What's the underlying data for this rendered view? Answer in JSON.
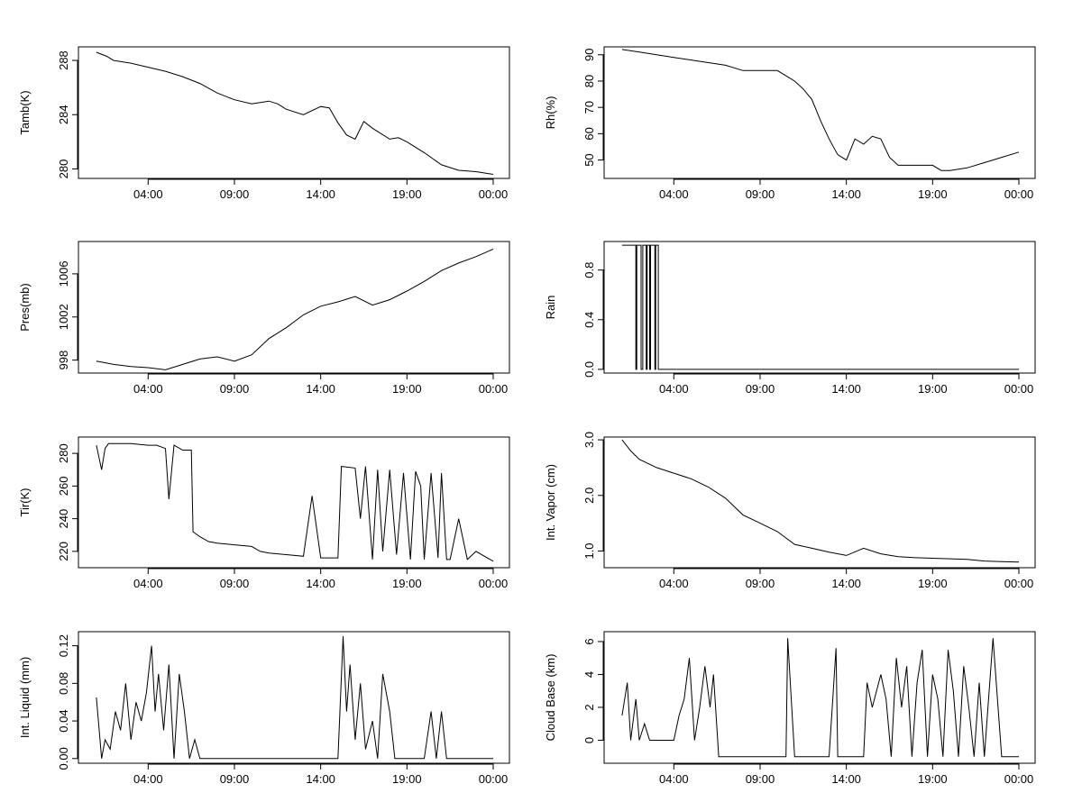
{
  "chart_data": [
    {
      "type": "line",
      "ylabel": "Tamb(K)",
      "xticks": [
        "04:00",
        "09:00",
        "14:00",
        "19:00",
        "00:00"
      ],
      "x_hours": [
        4,
        9,
        14,
        19,
        24
      ],
      "xlim": [
        0,
        24
      ],
      "ylim": [
        279.3,
        289.0
      ],
      "yticks": [
        280,
        284,
        288
      ],
      "series": [
        {
          "name": "Tamb",
          "x": [
            1,
            1.6,
            2,
            3,
            4,
            5,
            6,
            7,
            8,
            9,
            10,
            11,
            11.5,
            12,
            13,
            14,
            14.5,
            15,
            15.5,
            16,
            16.5,
            17,
            17.5,
            18,
            18.5,
            19,
            20,
            21,
            22,
            23,
            24
          ],
          "y": [
            288.6,
            288.3,
            288.0,
            287.8,
            287.5,
            287.2,
            286.8,
            286.3,
            285.6,
            285.1,
            284.8,
            285.0,
            284.8,
            284.4,
            284.0,
            284.6,
            284.5,
            283.4,
            282.5,
            282.2,
            283.5,
            283.0,
            282.6,
            282.2,
            282.3,
            282.0,
            281.2,
            280.3,
            279.9,
            279.8,
            279.6
          ]
        }
      ]
    },
    {
      "type": "line",
      "ylabel": "Rh(%)",
      "xticks": [
        "04:00",
        "09:00",
        "14:00",
        "19:00",
        "00:00"
      ],
      "x_hours": [
        4,
        9,
        14,
        19,
        24
      ],
      "xlim": [
        0,
        24
      ],
      "ylim": [
        43,
        93
      ],
      "yticks": [
        50,
        60,
        70,
        80,
        90
      ],
      "series": [
        {
          "name": "Rh",
          "x": [
            1,
            2,
            3,
            4,
            5,
            6,
            7,
            8,
            9,
            10,
            10.5,
            11,
            11.5,
            12,
            12.5,
            13,
            13.5,
            14,
            14.5,
            15,
            15.5,
            16,
            16.5,
            17,
            18,
            19,
            19.5,
            20,
            21,
            22,
            23,
            24
          ],
          "y": [
            92,
            91,
            90,
            89,
            88,
            87,
            86,
            84,
            84,
            84,
            82,
            80,
            77,
            73,
            65,
            58,
            52,
            50,
            58,
            56,
            59,
            58,
            51,
            48,
            48,
            48,
            46,
            46,
            47,
            49,
            51,
            53
          ]
        }
      ]
    },
    {
      "type": "line",
      "ylabel": "Pres(mb)",
      "xticks": [
        "04:00",
        "09:00",
        "14:00",
        "19:00",
        "00:00"
      ],
      "x_hours": [
        4,
        9,
        14,
        19,
        24
      ],
      "xlim": [
        0,
        24
      ],
      "ylim": [
        996.8,
        1009.0
      ],
      "yticks": [
        998,
        1002,
        1006
      ],
      "series": [
        {
          "name": "Pres",
          "x": [
            1,
            2,
            3,
            4,
            5,
            6,
            7,
            8,
            9,
            10,
            11,
            12,
            13,
            14,
            15,
            16,
            17,
            18,
            19,
            20,
            21,
            22,
            23,
            24
          ],
          "y": [
            997.9,
            997.6,
            997.4,
            997.3,
            997.1,
            997.6,
            998.1,
            998.3,
            997.9,
            998.5,
            1000.0,
            1001.0,
            1002.2,
            1003.0,
            1003.4,
            1003.9,
            1003.1,
            1003.6,
            1004.4,
            1005.3,
            1006.3,
            1007.0,
            1007.6,
            1008.3
          ]
        }
      ]
    },
    {
      "type": "line",
      "ylabel": "Rain",
      "xticks": [
        "04:00",
        "09:00",
        "14:00",
        "19:00",
        "00:00"
      ],
      "x_hours": [
        4,
        9,
        14,
        19,
        24
      ],
      "xlim": [
        0,
        24
      ],
      "ylim": [
        -0.03,
        1.03
      ],
      "yticks": [
        0.0,
        0.4,
        0.8
      ],
      "ytick_labels": [
        "0.0",
        "0.4",
        "0.8"
      ],
      "series": [
        {
          "name": "Rain",
          "x": [
            1,
            1.8,
            1.8,
            1.85,
            1.85,
            2.1,
            2.1,
            2.2,
            2.2,
            2.4,
            2.4,
            2.45,
            2.45,
            2.6,
            2.6,
            2.65,
            2.65,
            2.9,
            2.9,
            2.95,
            2.95,
            3.1,
            3.1,
            3.15,
            3.15,
            24
          ],
          "y": [
            1,
            1,
            0,
            0,
            1,
            1,
            0,
            0,
            1,
            1,
            0,
            0,
            1,
            1,
            0,
            0,
            1,
            1,
            0,
            0,
            1,
            1,
            0,
            0,
            0,
            0
          ]
        }
      ]
    },
    {
      "type": "line",
      "ylabel": "Tir(K)",
      "xticks": [
        "04:00",
        "09:00",
        "14:00",
        "19:00",
        "00:00"
      ],
      "x_hours": [
        4,
        9,
        14,
        19,
        24
      ],
      "xlim": [
        0,
        24
      ],
      "ylim": [
        210,
        290
      ],
      "yticks": [
        220,
        240,
        260,
        280
      ],
      "series": [
        {
          "name": "Tir",
          "x": [
            1,
            1.3,
            1.5,
            1.7,
            2,
            3,
            4,
            4.5,
            5,
            5.2,
            5.5,
            6,
            6.5,
            6.6,
            7,
            7.5,
            8,
            9,
            10,
            10.5,
            11,
            12,
            13,
            13.5,
            14,
            15,
            15.2,
            16,
            16.3,
            16.6,
            17,
            17.3,
            17.6,
            18,
            18.4,
            18.8,
            19.2,
            19.5,
            19.8,
            20,
            20.4,
            20.8,
            21,
            21.3,
            21.5,
            22,
            22.5,
            23,
            24
          ],
          "y": [
            285,
            270,
            283,
            286,
            286,
            286,
            285,
            285,
            283,
            252,
            285,
            282,
            282,
            232,
            229,
            226,
            225,
            224,
            223,
            220,
            219,
            218,
            217,
            254,
            216,
            216,
            272,
            271,
            240,
            272,
            215,
            270,
            220,
            270,
            218,
            268,
            215,
            269,
            260,
            215,
            268,
            216,
            268,
            215,
            215,
            240,
            215,
            220,
            214
          ]
        }
      ]
    },
    {
      "type": "line",
      "ylabel": "Int. Vapor (cm)",
      "xticks": [
        "04:00",
        "09:00",
        "14:00",
        "19:00",
        "00:00"
      ],
      "x_hours": [
        4,
        9,
        14,
        19,
        24
      ],
      "xlim": [
        0,
        24
      ],
      "ylim": [
        0.7,
        3.05
      ],
      "yticks": [
        1.0,
        2.0,
        3.0
      ],
      "ytick_labels": [
        "1.0",
        "2.0",
        "3.0"
      ],
      "series": [
        {
          "name": "Int. Vapor",
          "x": [
            1,
            1.5,
            2,
            3,
            4,
            5,
            6,
            7,
            8,
            9,
            10,
            11,
            12,
            13,
            14,
            15,
            16,
            17,
            18,
            19,
            20,
            21,
            22,
            23,
            24
          ],
          "y": [
            3.0,
            2.8,
            2.65,
            2.5,
            2.4,
            2.3,
            2.15,
            1.95,
            1.65,
            1.5,
            1.35,
            1.12,
            1.05,
            0.98,
            0.92,
            1.05,
            0.95,
            0.9,
            0.88,
            0.87,
            0.86,
            0.85,
            0.82,
            0.81,
            0.8
          ]
        }
      ]
    },
    {
      "type": "line",
      "ylabel": "Int. Liquid (mm)",
      "xticks": [
        "04:00",
        "09:00",
        "14:00",
        "19:00",
        "00:00"
      ],
      "x_hours": [
        4,
        9,
        14,
        19,
        24
      ],
      "xlim": [
        0,
        24
      ],
      "ylim": [
        -0.005,
        0.135
      ],
      "yticks": [
        0.0,
        0.04,
        0.08,
        0.12
      ],
      "ytick_labels": [
        "0.00",
        "0.04",
        "0.08",
        "0.12"
      ],
      "series": [
        {
          "name": "Int. Liquid",
          "x": [
            1,
            1.3,
            1.5,
            1.8,
            2.1,
            2.4,
            2.7,
            3,
            3.3,
            3.6,
            3.9,
            4.2,
            4.4,
            4.6,
            4.9,
            5.2,
            5.5,
            5.8,
            6.1,
            6.4,
            6.7,
            7,
            8,
            9,
            10,
            11,
            12,
            13,
            14,
            15,
            15.3,
            15.5,
            15.7,
            16,
            16.3,
            16.6,
            17,
            17.3,
            17.6,
            18,
            18.3,
            18.6,
            18.9,
            19.2,
            20,
            20.4,
            20.7,
            21,
            21.3,
            21.6,
            22,
            23,
            24
          ],
          "y": [
            0.065,
            0.0,
            0.02,
            0.01,
            0.05,
            0.03,
            0.08,
            0.02,
            0.06,
            0.04,
            0.07,
            0.12,
            0.05,
            0.09,
            0.03,
            0.1,
            0.0,
            0.09,
            0.05,
            0.0,
            0.02,
            0.0,
            0.0,
            0.0,
            0.0,
            0.0,
            0.0,
            0.0,
            0.0,
            0.0,
            0.13,
            0.05,
            0.1,
            0.02,
            0.08,
            0.01,
            0.04,
            0.0,
            0.09,
            0.05,
            0.0,
            0.0,
            0.0,
            0.0,
            0.0,
            0.05,
            0.0,
            0.05,
            0.0,
            0.0,
            0.0,
            0.0,
            0.0
          ]
        }
      ]
    },
    {
      "type": "line",
      "ylabel": "Cloud Base (km)",
      "xticks": [
        "04:00",
        "09:00",
        "14:00",
        "19:00",
        "00:00"
      ],
      "x_hours": [
        4,
        9,
        14,
        19,
        24
      ],
      "xlim": [
        0,
        24
      ],
      "ylim": [
        -1.4,
        6.6
      ],
      "yticks": [
        0,
        2,
        4,
        6
      ],
      "series": [
        {
          "name": "Cloud Base",
          "x": [
            1,
            1.3,
            1.5,
            1.8,
            2,
            2.3,
            2.6,
            2.9,
            3.2,
            3.5,
            4,
            4.3,
            4.6,
            4.9,
            5.2,
            5.5,
            5.8,
            6.1,
            6.3,
            6.6,
            6.8,
            7,
            8,
            9,
            10,
            10.5,
            10.6,
            11,
            12,
            13,
            13.4,
            13.5,
            14,
            15,
            15.2,
            15.5,
            16,
            16.3,
            16.6,
            16.9,
            17.2,
            17.5,
            17.8,
            18.1,
            18.4,
            18.7,
            19,
            19.3,
            19.6,
            19.9,
            20.2,
            20.5,
            20.8,
            21.1,
            21.4,
            21.7,
            22,
            22.5,
            23,
            24
          ],
          "y": [
            1.5,
            3.5,
            0.0,
            2.5,
            0.0,
            1.0,
            0.0,
            0.0,
            0.0,
            0.0,
            0.0,
            1.5,
            2.5,
            5.0,
            0.0,
            2.0,
            4.5,
            2.0,
            4.0,
            -1.0,
            -1.0,
            -1.0,
            -1.0,
            -1.0,
            -1.0,
            -1.0,
            6.2,
            -1.0,
            -1.0,
            -1.0,
            5.6,
            -1.0,
            -1.0,
            -1.0,
            3.5,
            2.0,
            4.0,
            2.5,
            -1.0,
            5.0,
            2.0,
            4.5,
            -1.0,
            3.5,
            5.5,
            -1.0,
            4.0,
            2.5,
            -1.0,
            5.5,
            3.0,
            -1.0,
            4.5,
            2.0,
            -1.0,
            3.5,
            -1.0,
            6.2,
            -1.0,
            -1.0
          ]
        }
      ]
    }
  ]
}
